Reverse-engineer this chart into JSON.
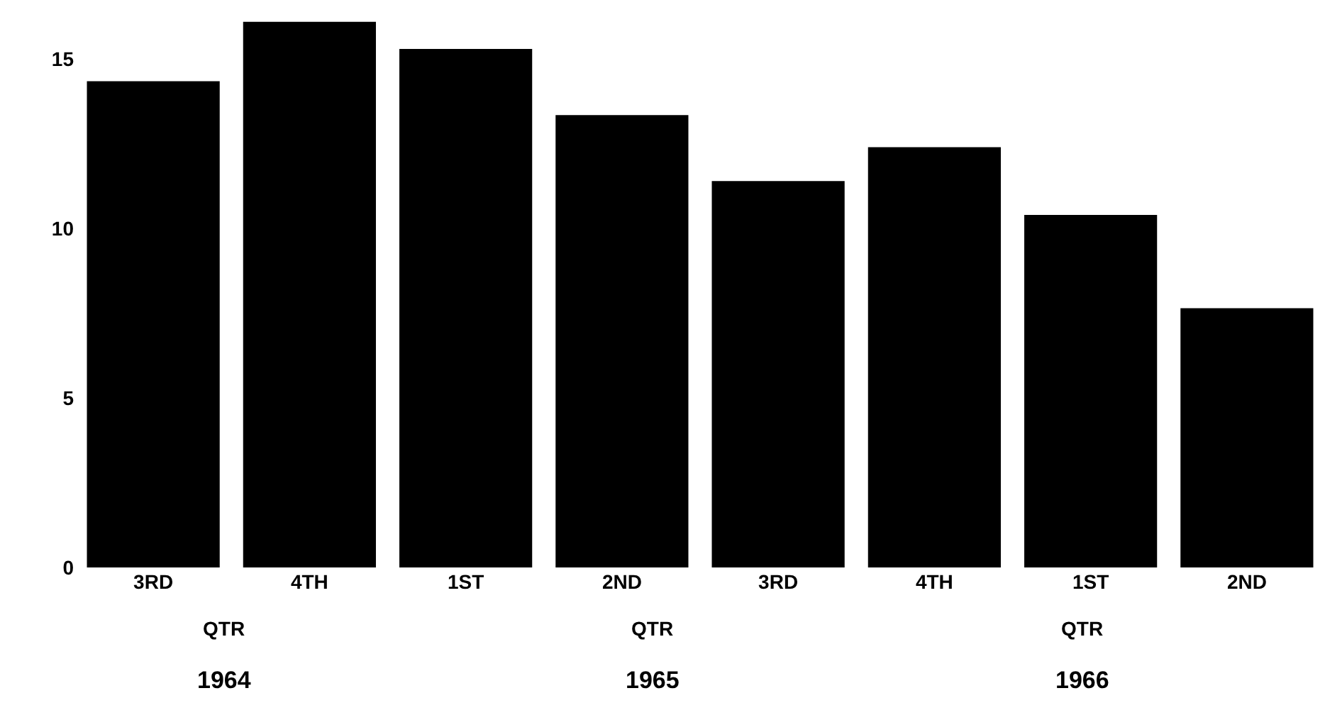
{
  "chart_data": {
    "type": "bar",
    "categories": [
      "3RD",
      "4TH",
      "1ST",
      "2ND",
      "3RD",
      "4TH",
      "1ST",
      "2ND"
    ],
    "values": [
      14.35,
      16.1,
      15.3,
      13.35,
      11.4,
      12.4,
      10.4,
      7.65
    ],
    "color": "#000000",
    "ylim": [
      0,
      16.2
    ],
    "yticks": [
      0,
      5,
      10,
      15
    ],
    "annotations": [
      "QTR",
      "QTR",
      "QTR",
      "1964",
      "1965",
      "1966"
    ]
  }
}
